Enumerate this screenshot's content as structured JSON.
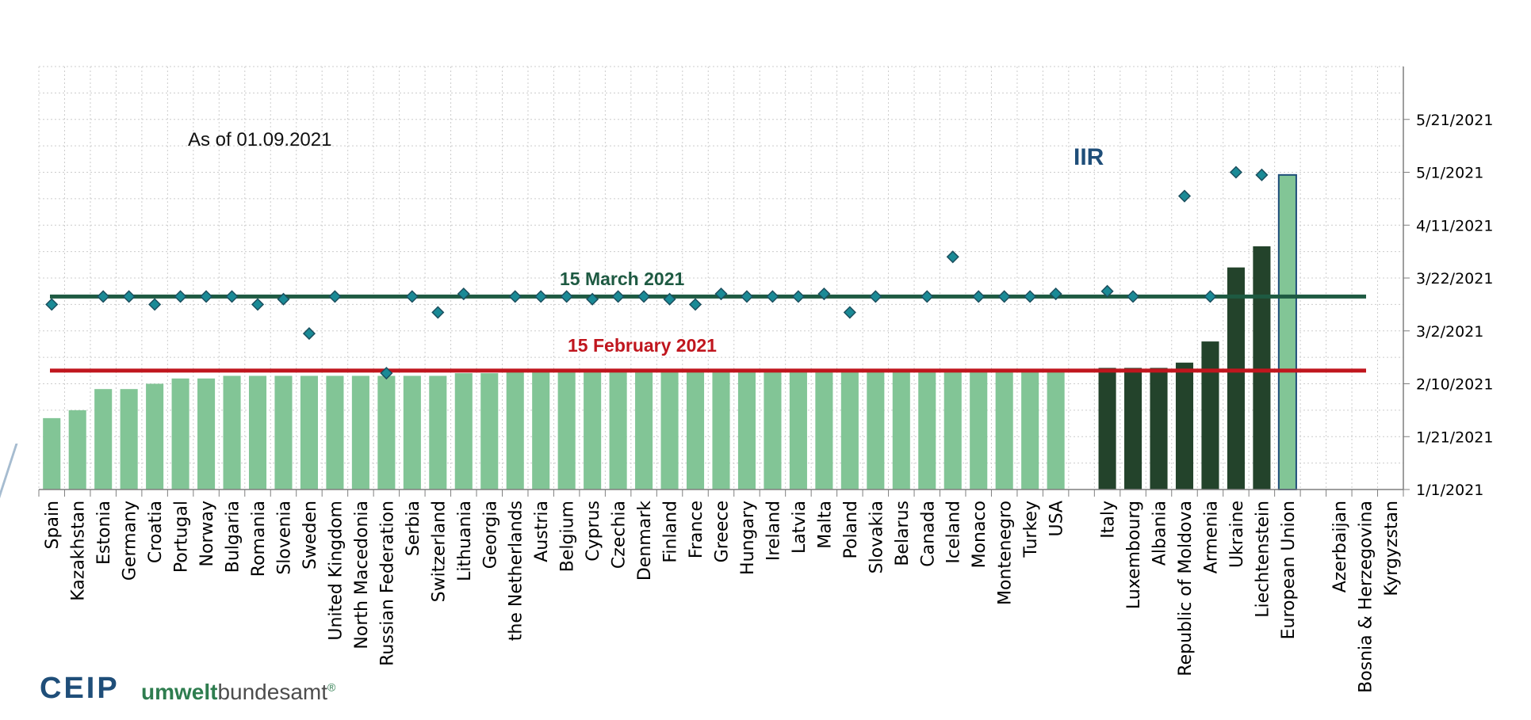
{
  "annotations": {
    "as_of": "As of  01.09.2021",
    "iir": "IIR",
    "ref_march": "15 March 2021",
    "ref_february": "15 February 2021"
  },
  "logos": {
    "ceip": "CEIP",
    "uba_part1": "umwelt",
    "uba_part2": "bundesamt",
    "uba_mark": "®"
  },
  "colors": {
    "bar_light": "#82c596",
    "bar_dark": "#23432b",
    "marker": "#1a8a96",
    "marker_edge": "#1b4f5e",
    "line_march": "#1e5a42",
    "line_february": "#c0161e",
    "grid": "#cccccc",
    "eu_bar_edge": "#1f4e79"
  },
  "chart_data": {
    "type": "bar",
    "title": "",
    "xlabel": "",
    "ylabel": "",
    "y_axis_position": "right",
    "ylim": [
      "2021-01-01",
      "2021-06-10"
    ],
    "y_ticks": [
      "1/1/2021",
      "1/21/2021",
      "2/10/2021",
      "3/2/2021",
      "3/22/2021",
      "4/11/2021",
      "5/1/2021",
      "5/21/2021"
    ],
    "grid": true,
    "reference_lines": [
      {
        "label": "15 March 2021",
        "date": "2021-03-15",
        "color": "#1e5a42"
      },
      {
        "label": "15 February 2021",
        "date": "2021-02-15",
        "color": "#c0161e"
      }
    ],
    "categories": [
      "Spain",
      "Kazakhstan",
      "Estonia",
      "Germany",
      "Croatia",
      "Portugal",
      "Norway",
      "Bulgaria",
      "Romania",
      "Slovenia",
      "Sweden",
      "United Kingdom",
      "North Macedonia",
      "Russian Federation",
      "Serbia",
      "Switzerland",
      "Lithuania",
      "Georgia",
      "the Netherlands",
      "Austria",
      "Belgium",
      "Cyprus",
      "Czechia",
      "Denmark",
      "Finland",
      "France",
      "Greece",
      "Hungary",
      "Ireland",
      "Latvia",
      "Malta",
      "Poland",
      "Slovakia",
      "Belarus",
      "Canada",
      "Iceland",
      "Monaco",
      "Montenegro",
      "Turkey",
      "USA",
      "",
      "Italy",
      "Luxembourg",
      "Albania",
      "Republic of Moldova",
      "Armenia",
      "Ukraine",
      "Liechtenstein",
      "European Union",
      "",
      "Azerbaijan",
      "Bosnia & Herzegovina",
      "Kyrgyzstan"
    ],
    "series": [
      {
        "name": "",
        "kind": "bar",
        "values": [
          "2021-01-28",
          "2021-01-31",
          "2021-02-08",
          "2021-02-08",
          "2021-02-10",
          "2021-02-12",
          "2021-02-12",
          "2021-02-13",
          "2021-02-13",
          "2021-02-13",
          "2021-02-13",
          "2021-02-13",
          "2021-02-13",
          "2021-02-13",
          "2021-02-13",
          "2021-02-13",
          "2021-02-14",
          "2021-02-14",
          "2021-02-15",
          "2021-02-15",
          "2021-02-15",
          "2021-02-15",
          "2021-02-15",
          "2021-02-15",
          "2021-02-15",
          "2021-02-15",
          "2021-02-15",
          "2021-02-15",
          "2021-02-15",
          "2021-02-15",
          "2021-02-15",
          "2021-02-15",
          "2021-02-15",
          "2021-02-15",
          "2021-02-15",
          "2021-02-15",
          "2021-02-15",
          "2021-02-15",
          "2021-02-15",
          "2021-02-15",
          null,
          "2021-02-16",
          "2021-02-16",
          "2021-02-16",
          "2021-02-18",
          "2021-02-26",
          "2021-03-26",
          "2021-04-03",
          "2021-04-30",
          null,
          null,
          null,
          null
        ]
      },
      {
        "name": "IIR",
        "kind": "marker",
        "values": [
          "2021-03-12",
          null,
          "2021-03-15",
          "2021-03-15",
          "2021-03-12",
          "2021-03-15",
          "2021-03-15",
          "2021-03-15",
          "2021-03-12",
          "2021-03-14",
          "2021-03-01",
          "2021-03-15",
          null,
          "2021-02-14",
          "2021-03-15",
          "2021-03-09",
          "2021-03-16",
          null,
          "2021-03-15",
          "2021-03-15",
          "2021-03-15",
          "2021-03-14",
          "2021-03-15",
          "2021-03-15",
          "2021-03-14",
          "2021-03-12",
          "2021-03-16",
          "2021-03-15",
          "2021-03-15",
          "2021-03-15",
          "2021-03-16",
          "2021-03-09",
          "2021-03-15",
          null,
          "2021-03-15",
          "2021-03-30",
          "2021-03-15",
          "2021-03-15",
          "2021-03-15",
          "2021-03-16",
          null,
          "2021-03-17",
          "2021-03-15",
          null,
          "2021-04-22",
          "2021-03-15",
          "2021-05-01",
          "2021-04-30",
          null,
          null,
          null,
          null,
          null
        ]
      }
    ]
  }
}
